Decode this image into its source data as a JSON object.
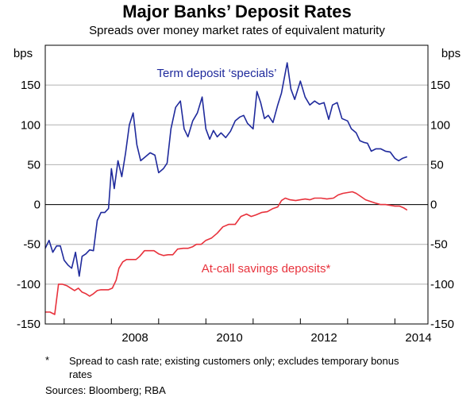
{
  "chart_data": {
    "type": "line",
    "title": "Major Banks’ Deposit Rates",
    "subtitle": "Spreads over money market rates of equivalent maturity",
    "ylabel_left": "bps",
    "ylabel_right": "bps",
    "ylim": [
      -150,
      200
    ],
    "yticks": [
      -150,
      -100,
      -50,
      0,
      50,
      100,
      150
    ],
    "xlim": [
      2006.6,
      2014.7
    ],
    "xticks": [
      {
        "value": 2008,
        "label": "2008"
      },
      {
        "value": 2010,
        "label": "2010"
      },
      {
        "value": 2012,
        "label": "2012"
      },
      {
        "value": 2014,
        "label": "2014"
      }
    ],
    "xminor": [
      2007,
      2009,
      2011,
      2013
    ],
    "grid": "horizontal",
    "series": [
      {
        "name": "Term deposit ‘specials’",
        "label": "Term deposit ‘specials’",
        "color": "#1f2a9c",
        "points": [
          [
            2006.6,
            -55
          ],
          [
            2006.68,
            -45
          ],
          [
            2006.76,
            -60
          ],
          [
            2006.84,
            -52
          ],
          [
            2006.92,
            -52
          ],
          [
            2007.0,
            -70
          ],
          [
            2007.08,
            -76
          ],
          [
            2007.16,
            -80
          ],
          [
            2007.24,
            -60
          ],
          [
            2007.32,
            -90
          ],
          [
            2007.38,
            -65
          ],
          [
            2007.46,
            -62
          ],
          [
            2007.54,
            -57
          ],
          [
            2007.62,
            -58
          ],
          [
            2007.7,
            -20
          ],
          [
            2007.78,
            -10
          ],
          [
            2007.86,
            -10
          ],
          [
            2007.94,
            -5
          ],
          [
            2008.0,
            45
          ],
          [
            2008.06,
            20
          ],
          [
            2008.14,
            55
          ],
          [
            2008.22,
            35
          ],
          [
            2008.3,
            65
          ],
          [
            2008.38,
            100
          ],
          [
            2008.46,
            115
          ],
          [
            2008.54,
            75
          ],
          [
            2008.62,
            55
          ],
          [
            2008.72,
            60
          ],
          [
            2008.82,
            65
          ],
          [
            2008.92,
            62
          ],
          [
            2009.0,
            40
          ],
          [
            2009.1,
            45
          ],
          [
            2009.18,
            52
          ],
          [
            2009.26,
            95
          ],
          [
            2009.36,
            122
          ],
          [
            2009.46,
            130
          ],
          [
            2009.54,
            95
          ],
          [
            2009.62,
            85
          ],
          [
            2009.72,
            105
          ],
          [
            2009.82,
            115
          ],
          [
            2009.92,
            135
          ],
          [
            2010.0,
            95
          ],
          [
            2010.08,
            82
          ],
          [
            2010.16,
            93
          ],
          [
            2010.24,
            85
          ],
          [
            2010.32,
            90
          ],
          [
            2010.42,
            84
          ],
          [
            2010.52,
            92
          ],
          [
            2010.62,
            105
          ],
          [
            2010.72,
            110
          ],
          [
            2010.8,
            112
          ],
          [
            2010.88,
            102
          ],
          [
            2011.0,
            95
          ],
          [
            2011.08,
            142
          ],
          [
            2011.16,
            128
          ],
          [
            2011.24,
            108
          ],
          [
            2011.32,
            112
          ],
          [
            2011.42,
            103
          ],
          [
            2011.52,
            125
          ],
          [
            2011.6,
            140
          ],
          [
            2011.72,
            178
          ],
          [
            2011.8,
            145
          ],
          [
            2011.88,
            132
          ],
          [
            2012.0,
            155
          ],
          [
            2012.1,
            135
          ],
          [
            2012.2,
            125
          ],
          [
            2012.3,
            130
          ],
          [
            2012.4,
            126
          ],
          [
            2012.5,
            128
          ],
          [
            2012.6,
            107
          ],
          [
            2012.68,
            125
          ],
          [
            2012.78,
            128
          ],
          [
            2012.88,
            108
          ],
          [
            2013.0,
            105
          ],
          [
            2013.08,
            95
          ],
          [
            2013.18,
            90
          ],
          [
            2013.26,
            80
          ],
          [
            2013.34,
            78
          ],
          [
            2013.42,
            77
          ],
          [
            2013.5,
            67
          ],
          [
            2013.6,
            70
          ],
          [
            2013.7,
            70
          ],
          [
            2013.8,
            67
          ],
          [
            2013.9,
            66
          ],
          [
            2014.0,
            58
          ],
          [
            2014.08,
            55
          ],
          [
            2014.16,
            58
          ],
          [
            2014.26,
            60
          ]
        ]
      },
      {
        "name": "At-call savings deposits*",
        "label": "At-call savings deposits*",
        "color": "#e8323c",
        "points": [
          [
            2006.6,
            -135
          ],
          [
            2006.7,
            -135
          ],
          [
            2006.8,
            -138
          ],
          [
            2006.88,
            -100
          ],
          [
            2006.96,
            -100
          ],
          [
            2007.06,
            -102
          ],
          [
            2007.14,
            -105
          ],
          [
            2007.22,
            -108
          ],
          [
            2007.3,
            -105
          ],
          [
            2007.38,
            -110
          ],
          [
            2007.46,
            -112
          ],
          [
            2007.54,
            -115
          ],
          [
            2007.62,
            -112
          ],
          [
            2007.7,
            -108
          ],
          [
            2007.78,
            -107
          ],
          [
            2007.86,
            -107
          ],
          [
            2007.94,
            -107
          ],
          [
            2008.02,
            -105
          ],
          [
            2008.1,
            -95
          ],
          [
            2008.16,
            -80
          ],
          [
            2008.24,
            -72
          ],
          [
            2008.32,
            -69
          ],
          [
            2008.42,
            -69
          ],
          [
            2008.52,
            -69
          ],
          [
            2008.6,
            -65
          ],
          [
            2008.7,
            -58
          ],
          [
            2008.8,
            -58
          ],
          [
            2008.9,
            -58
          ],
          [
            2009.0,
            -62
          ],
          [
            2009.1,
            -64
          ],
          [
            2009.2,
            -63
          ],
          [
            2009.3,
            -63
          ],
          [
            2009.4,
            -56
          ],
          [
            2009.52,
            -55
          ],
          [
            2009.62,
            -55
          ],
          [
            2009.72,
            -53
          ],
          [
            2009.8,
            -50
          ],
          [
            2009.9,
            -50
          ],
          [
            2010.0,
            -45
          ],
          [
            2010.12,
            -42
          ],
          [
            2010.24,
            -36
          ],
          [
            2010.36,
            -28
          ],
          [
            2010.48,
            -25
          ],
          [
            2010.62,
            -25
          ],
          [
            2010.74,
            -15
          ],
          [
            2010.86,
            -12
          ],
          [
            2010.96,
            -15
          ],
          [
            2011.06,
            -13
          ],
          [
            2011.18,
            -10
          ],
          [
            2011.3,
            -9
          ],
          [
            2011.42,
            -5
          ],
          [
            2011.52,
            -3
          ],
          [
            2011.6,
            5
          ],
          [
            2011.68,
            8
          ],
          [
            2011.78,
            6
          ],
          [
            2011.9,
            5
          ],
          [
            2012.0,
            6
          ],
          [
            2012.1,
            7
          ],
          [
            2012.2,
            6
          ],
          [
            2012.3,
            8
          ],
          [
            2012.44,
            8
          ],
          [
            2012.56,
            7
          ],
          [
            2012.7,
            8
          ],
          [
            2012.8,
            12
          ],
          [
            2012.9,
            14
          ],
          [
            2013.0,
            15
          ],
          [
            2013.1,
            16
          ],
          [
            2013.18,
            14
          ],
          [
            2013.28,
            10
          ],
          [
            2013.38,
            6
          ],
          [
            2013.48,
            4
          ],
          [
            2013.58,
            2
          ],
          [
            2013.7,
            0
          ],
          [
            2013.8,
            0
          ],
          [
            2013.9,
            -1
          ],
          [
            2014.0,
            -2
          ],
          [
            2014.1,
            -2
          ],
          [
            2014.18,
            -4
          ],
          [
            2014.26,
            -7
          ]
        ]
      }
    ]
  },
  "footnote": {
    "mark": "*",
    "text": "Spread to cash rate; existing customers only; excludes temporary bonus rates"
  },
  "sources": "Sources:   Bloomberg; RBA"
}
